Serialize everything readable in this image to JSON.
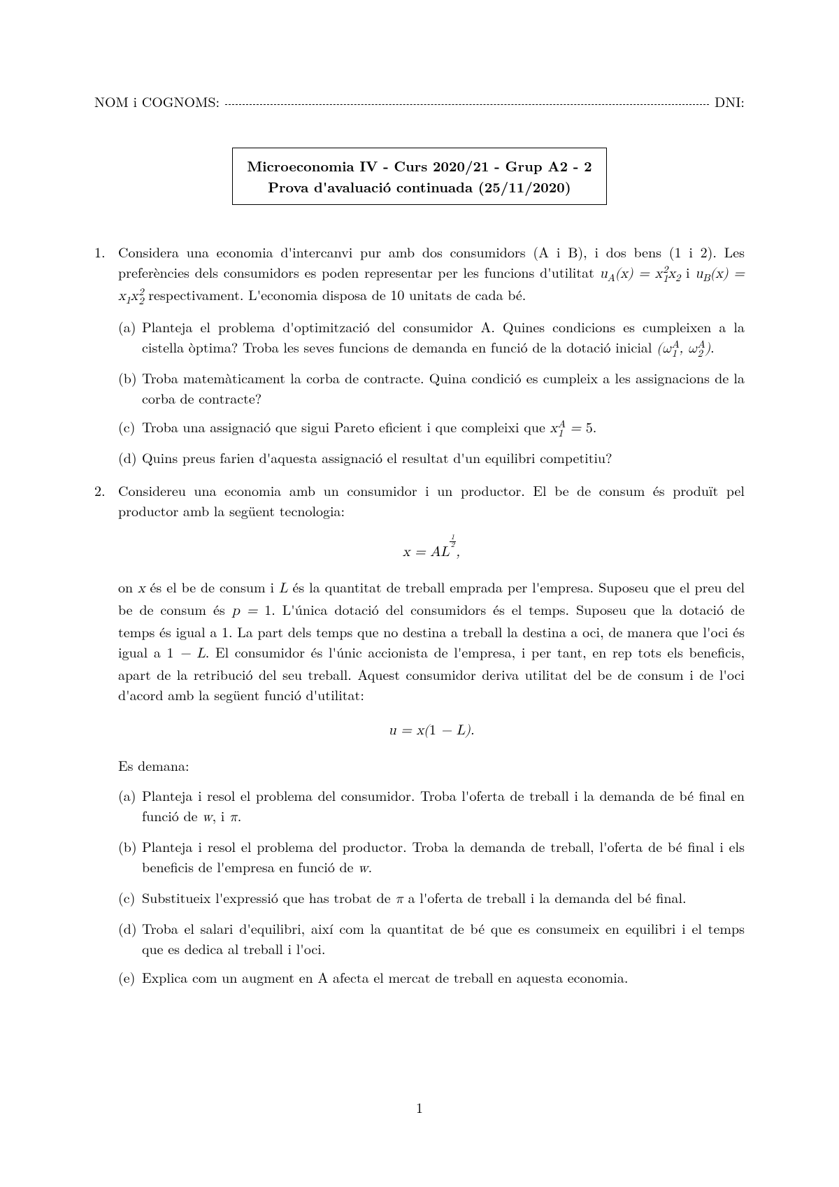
{
  "header": {
    "name_label": "NOM i COGNOMS:",
    "dni_label": "DNI:"
  },
  "title_box": {
    "line1": "Microeconomia IV - Curs 2020/21 - Grup A2 - 2",
    "line2": "Prova d'avaluació continuada (25/11/2020)"
  },
  "q1": {
    "intro_a": "Considera una economia d'intercanvi pur amb dos consumidors (A i B), i dos bens (1 i 2). Les preferències dels consumidors es poden representar per les funcions d'utilitat ",
    "intro_b": " i ",
    "intro_c": " respectivament. L'economia disposa de 10 unitats de cada bé.",
    "a_pre": "Planteja el problema d'optimització del consumidor A. Quines condicions es cumpleixen a la cistella òptima? Troba les seves funcions de demanda en funció de la dotació inicial ",
    "a_post": ".",
    "b": "Troba matemàticament la corba de contracte. Quina condició es cumpleix a les assignacions de la corba de contracte?",
    "c_pre": "Troba una assignació que sigui Pareto eficient i que compleixi que ",
    "c_post": ".",
    "d": "Quins preus farien d'aquesta assignació el resultat d'un equilibri competitiu?"
  },
  "q2": {
    "intro": "Considereu una economia amb un consumidor i un productor. El be de consum és produït pel productor amb la següent tecnologia:",
    "para_a": "on ",
    "para_b": " és el be de consum i ",
    "para_c": " és la quantitat de treball emprada per l'empresa. Suposeu que el preu del be de consum és ",
    "para_d": ". L'única dotació del consumidors és el temps. Suposeu que la dotació de temps és igual a 1. La part dels temps que no destina a treball la destina a oci, de manera que l'oci és igual a ",
    "para_e": ". El consumidor és l'únic accionista de l'empresa, i per tant, en rep tots els beneficis, apart de la retribució del seu treball. Aquest consumidor deriva utilitat del be de consum i de l'oci d'acord amb la següent funció d'utilitat:",
    "es_demana": "Es demana:",
    "a_pre": "Planteja i resol el problema del consumidor. Troba l'oferta de treball i la demanda de bé final en funció de ",
    "a_mid": ", i ",
    "a_post": ".",
    "b_pre": "Planteja i resol el problema del productor. Troba la demanda de treball, l'oferta de bé final i els beneficis de l'empresa en funció de ",
    "b_post": ".",
    "c_pre": "Substitueix l'expressió que has trobat de ",
    "c_post": " a l'oferta de treball i la demanda del bé final.",
    "d": "Troba el salari d'equilibri, així com la quantitat de bé que es consumeix en equilibri i el temps que es dedica al treball i l'oci.",
    "e": "Explica com un augment en A afecta el mercat de treball en aquesta economia."
  },
  "page_number": "1"
}
